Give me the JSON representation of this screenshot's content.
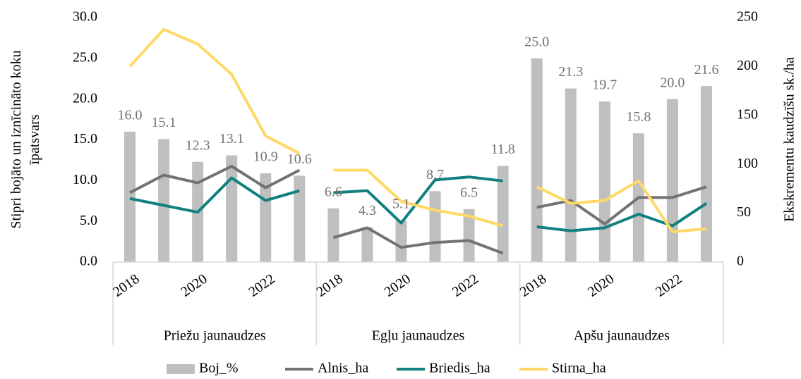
{
  "chart_data": {
    "type": "bar",
    "categories": [
      "2018",
      null,
      "2020",
      null,
      "2022",
      null,
      "2018",
      null,
      "2020",
      null,
      "2022",
      null,
      "2018",
      null,
      "2020",
      null,
      "2022",
      null
    ],
    "groups": [
      "Priežu jaunaudzes",
      "Egļu jaunaudzes",
      "Apšu jaunaudzes"
    ],
    "y_label": "Stipri bojāto un iznīcināto koku īpatsvars",
    "y2_label": "Ekskrementu kaudzīšu sk./ha",
    "ylim": [
      0,
      30
    ],
    "yticks": [
      {
        "value": 0,
        "label": "0.0"
      },
      {
        "value": 5,
        "label": "5.0"
      },
      {
        "value": 10,
        "label": "10.0"
      },
      {
        "value": 15,
        "label": "15.0"
      },
      {
        "value": 20,
        "label": "20.0"
      },
      {
        "value": 25,
        "label": "25.0"
      },
      {
        "value": 30,
        "label": "30.0"
      }
    ],
    "y2lim": [
      0,
      250
    ],
    "y2ticks": [
      0,
      50,
      100,
      150,
      200,
      250
    ],
    "grid": false,
    "legend": "bottom",
    "series": [
      {
        "name": "Boj_%",
        "type": "bar",
        "color": "#bfbfbf",
        "values": [
          16.0,
          15.1,
          12.3,
          13.1,
          10.9,
          10.6,
          6.6,
          4.3,
          5.1,
          8.7,
          6.5,
          11.8,
          25.0,
          21.3,
          19.7,
          15.8,
          20.0,
          21.6
        ],
        "value_labels": [
          "16.0",
          "15.1",
          "12.3",
          "13.1",
          "10.9",
          "10.6",
          "6.6",
          "4.3",
          "5.1",
          "8.7",
          "6.5",
          "11.8",
          "25.0",
          "21.3",
          "19.7",
          "15.8",
          "20.0",
          "21.6"
        ]
      },
      {
        "name": "Alnis_ha",
        "type": "line",
        "axis": "y2",
        "color": "#767171",
        "values": [
          71,
          89,
          81,
          98,
          76,
          94,
          25,
          35,
          15,
          20,
          22,
          9,
          56,
          63,
          39,
          66,
          66,
          77
        ]
      },
      {
        "name": "Briedis_ha",
        "type": "line",
        "axis": "y2",
        "color": "#138080",
        "values": [
          65,
          58,
          51,
          86,
          63,
          73,
          71,
          73,
          40,
          84,
          87,
          83,
          36,
          32,
          35,
          49,
          37,
          60
        ]
      },
      {
        "name": "Stirna_ha",
        "type": "line",
        "axis": "y2",
        "color": "#ffd966",
        "values": [
          200,
          238,
          223,
          192,
          129,
          111,
          94,
          94,
          62,
          53,
          47,
          37,
          77,
          60,
          63,
          83,
          31,
          34
        ]
      }
    ]
  }
}
